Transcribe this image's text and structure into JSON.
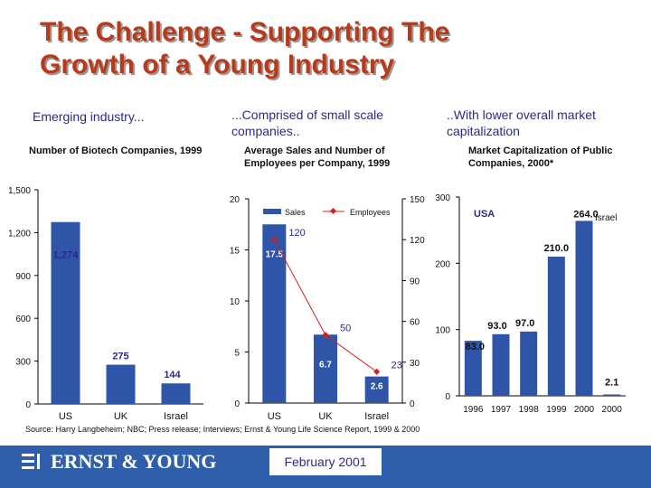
{
  "slide": {
    "title_line1": "The Challenge - Supporting The",
    "title_line2": "Growth of a Young Industry",
    "source": "Source: Harry Langbeheim; NBC; Press release; Interviews; Ernst & Young Life Science Report, 1999 & 2000",
    "date": "February 2001",
    "logo_text": "ERNST & YOUNG"
  },
  "panels": [
    {
      "heading": "Emerging industry...",
      "subheading": "Number of Biotech Companies, 1999"
    },
    {
      "heading": "...Comprised of small scale companies..",
      "subheading": "Average Sales and Number of Employees per Company, 1999"
    },
    {
      "heading": "..With lower overall market capitalization",
      "subheading": "Market Capitalization of Public Companies, 2000*"
    }
  ],
  "colors": {
    "title": "#b83a1b",
    "bar": "#2e55a8",
    "line": "#d02020",
    "footer": "#2f5faa",
    "text": "#2a2a8c"
  },
  "chart_data": [
    {
      "type": "bar",
      "categories": [
        "US",
        "UK",
        "Israel"
      ],
      "values": [
        1274,
        275,
        144
      ],
      "value_labels": [
        "1,274",
        "275",
        "144"
      ],
      "yticks": [
        "0",
        "300",
        "600",
        "900",
        "1,200",
        "1,500"
      ],
      "ylim": [
        0,
        1500
      ],
      "grid": false
    },
    {
      "type": "bar+line",
      "categories": [
        "US",
        "UK",
        "Israel"
      ],
      "series": [
        {
          "name": "Sales",
          "type": "bar",
          "values": [
            17.5,
            6.7,
            2.6
          ],
          "value_labels": [
            "17.5",
            "6.7",
            "2.6"
          ]
        },
        {
          "name": "Employees",
          "type": "line",
          "values": [
            120,
            50,
            23
          ],
          "value_labels": [
            "120",
            "50",
            "23"
          ]
        }
      ],
      "yticks_left": [
        "0",
        "5",
        "10",
        "15",
        "20"
      ],
      "ylim_left": [
        0,
        20
      ],
      "yticks_right": [
        "0",
        "30",
        "60",
        "90",
        "120",
        "150"
      ],
      "ylim_right": [
        0,
        150
      ],
      "legend": "top",
      "grid": false
    },
    {
      "type": "bar",
      "categories": [
        "1996",
        "1997",
        "1998",
        "1999",
        "2000",
        "2000"
      ],
      "values": [
        83.0,
        93.0,
        97.0,
        210.0,
        264.0,
        2.1
      ],
      "value_labels": [
        "83.0",
        "93.0",
        "97.0",
        "210.0",
        "264.0",
        "2.1"
      ],
      "group_labels": [
        "USA",
        "Israel"
      ],
      "yticks": [
        "0",
        "100",
        "200",
        "300"
      ],
      "ylim": [
        0,
        300
      ],
      "grid": false
    }
  ]
}
